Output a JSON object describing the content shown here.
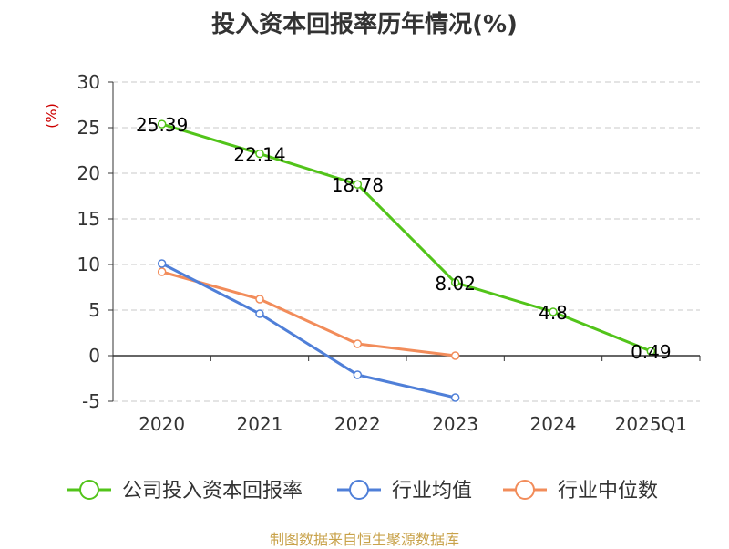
{
  "title": "投入资本回报率历年情况(%)",
  "source": "制图数据来自恒生聚源数据库",
  "chart_data": {
    "type": "line",
    "title": "投入资本回报率历年情况(%)",
    "ylabel": "(%)",
    "xlabel": "",
    "categories": [
      "2020",
      "2021",
      "2022",
      "2023",
      "2024",
      "2025Q1"
    ],
    "ylim": [
      -5,
      30
    ],
    "yticks": [
      -5,
      0,
      5,
      10,
      15,
      20,
      25,
      30
    ],
    "grid": true,
    "legend_position": "bottom",
    "series": [
      {
        "name": "公司投入资本回报率",
        "color": "#52c41a",
        "values": [
          25.39,
          22.14,
          18.78,
          8.02,
          4.8,
          0.49
        ],
        "data_labels": [
          "25.39",
          "22.14",
          "18.78",
          "8.02",
          "4.8",
          "0.49"
        ]
      },
      {
        "name": "行业均值",
        "color": "#4f7fd8",
        "values": [
          10.1,
          4.6,
          -2.1,
          -4.6,
          null,
          null
        ]
      },
      {
        "name": "行业中位数",
        "color": "#f28c5a",
        "values": [
          9.2,
          6.2,
          1.3,
          0.0,
          null,
          null
        ]
      }
    ]
  }
}
